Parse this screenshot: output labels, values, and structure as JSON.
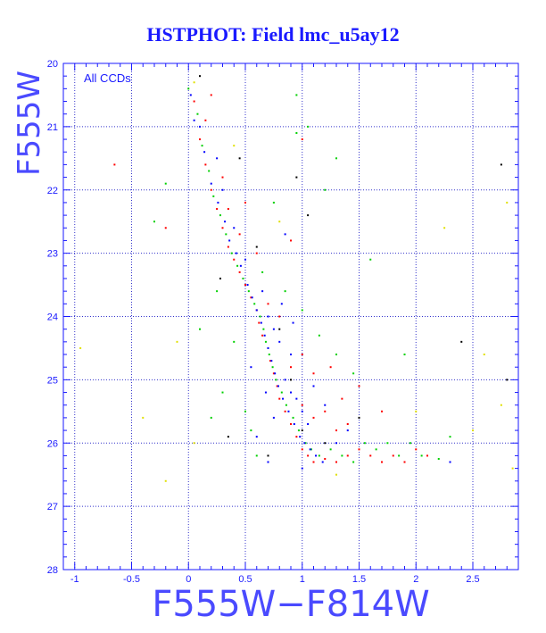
{
  "chart_data": {
    "type": "scatter",
    "title": "HSTPHOT: Field lmc_u5ay12",
    "xlabel": "F555W−F814W",
    "ylabel": "F555W",
    "annotation": "All CCDs",
    "xlim": [
      -1.1,
      2.9
    ],
    "ylim": [
      28,
      20
    ],
    "y_inverted": true,
    "grid": true,
    "x_ticks": [
      -1,
      -0.5,
      0,
      0.5,
      1,
      1.5,
      2,
      2.5
    ],
    "x_tick_labels": [
      "-1",
      "-0.5",
      "0",
      "0.5",
      "1",
      "1.5",
      "2",
      "2.5"
    ],
    "y_ticks": [
      20,
      21,
      22,
      23,
      24,
      25,
      26,
      27,
      28
    ],
    "y_tick_labels": [
      "20",
      "21",
      "22",
      "23",
      "24",
      "25",
      "26",
      "27",
      "28"
    ],
    "colors": {
      "axis": "#1a1aff",
      "grid": "#3333cc",
      "title": "#1a1aff",
      "points": [
        "#ff0000",
        "#00d000",
        "#0000ff",
        "#000000",
        "#e0e000"
      ]
    },
    "series": [
      {
        "color": "#ff0000",
        "points": [
          [
            0.05,
            20.6
          ],
          [
            0.1,
            21.2
          ],
          [
            0.15,
            21.6
          ],
          [
            0.2,
            22.0
          ],
          [
            0.25,
            22.3
          ],
          [
            0.3,
            22.6
          ],
          [
            0.35,
            22.9
          ],
          [
            0.4,
            23.1
          ],
          [
            0.45,
            23.3
          ],
          [
            0.5,
            23.5
          ],
          [
            0.55,
            23.7
          ],
          [
            0.6,
            23.9
          ],
          [
            0.62,
            24.1
          ],
          [
            0.65,
            24.3
          ],
          [
            0.7,
            24.5
          ],
          [
            0.72,
            24.7
          ],
          [
            0.75,
            24.9
          ],
          [
            0.78,
            25.1
          ],
          [
            0.8,
            25.3
          ],
          [
            0.85,
            25.5
          ],
          [
            0.9,
            25.7
          ],
          [
            0.95,
            25.9
          ],
          [
            1.0,
            26.1
          ],
          [
            1.05,
            26.2
          ],
          [
            1.1,
            26.3
          ],
          [
            1.2,
            26.25
          ],
          [
            1.3,
            26.3
          ],
          [
            1.4,
            26.2
          ],
          [
            1.5,
            26.1
          ],
          [
            1.6,
            26.2
          ],
          [
            1.7,
            26.3
          ],
          [
            1.8,
            26.2
          ],
          [
            1.9,
            26.3
          ],
          [
            2.0,
            26.1
          ],
          [
            2.1,
            26.2
          ],
          [
            1.0,
            25.4
          ],
          [
            1.1,
            25.6
          ],
          [
            1.2,
            25.5
          ],
          [
            1.3,
            25.8
          ],
          [
            1.4,
            25.7
          ],
          [
            0.9,
            24.8
          ],
          [
            1.0,
            24.6
          ],
          [
            1.1,
            24.9
          ],
          [
            0.7,
            23.8
          ],
          [
            0.8,
            24.0
          ],
          [
            0.3,
            21.8
          ],
          [
            0.5,
            22.2
          ],
          [
            -0.65,
            21.6
          ],
          [
            -0.2,
            22.6
          ],
          [
            0.2,
            20.5
          ],
          [
            1.0,
            21.2
          ],
          [
            0.9,
            22.8
          ],
          [
            1.5,
            25.1
          ],
          [
            1.7,
            25.5
          ],
          [
            0.6,
            23.0
          ],
          [
            0.45,
            22.7
          ],
          [
            0.35,
            22.3
          ],
          [
            0.15,
            20.9
          ],
          [
            1.25,
            24.8
          ],
          [
            1.35,
            25.3
          ]
        ]
      },
      {
        "color": "#00d000",
        "points": [
          [
            0.0,
            20.4
          ],
          [
            0.08,
            20.8
          ],
          [
            0.12,
            21.3
          ],
          [
            0.18,
            21.7
          ],
          [
            0.22,
            22.1
          ],
          [
            0.28,
            22.4
          ],
          [
            0.33,
            22.7
          ],
          [
            0.38,
            23.0
          ],
          [
            0.43,
            23.2
          ],
          [
            0.48,
            23.4
          ],
          [
            0.53,
            23.6
          ],
          [
            0.58,
            23.8
          ],
          [
            0.63,
            24.0
          ],
          [
            0.66,
            24.2
          ],
          [
            0.68,
            24.4
          ],
          [
            0.71,
            24.6
          ],
          [
            0.74,
            24.8
          ],
          [
            0.77,
            25.0
          ],
          [
            0.82,
            25.2
          ],
          [
            0.86,
            25.4
          ],
          [
            0.92,
            25.6
          ],
          [
            0.97,
            25.8
          ],
          [
            1.03,
            26.0
          ],
          [
            1.08,
            26.1
          ],
          [
            1.15,
            26.2
          ],
          [
            1.25,
            26.1
          ],
          [
            1.35,
            26.2
          ],
          [
            1.45,
            26.3
          ],
          [
            1.55,
            26.0
          ],
          [
            1.65,
            26.1
          ],
          [
            1.75,
            26.0
          ],
          [
            1.85,
            26.2
          ],
          [
            1.95,
            26.0
          ],
          [
            2.05,
            26.2
          ],
          [
            2.2,
            26.25
          ],
          [
            0.55,
            25.8
          ],
          [
            0.6,
            26.2
          ],
          [
            0.5,
            25.5
          ],
          [
            0.3,
            25.2
          ],
          [
            0.1,
            24.2
          ],
          [
            0.2,
            25.6
          ],
          [
            0.85,
            23.6
          ],
          [
            1.0,
            23.9
          ],
          [
            1.15,
            24.3
          ],
          [
            1.3,
            24.6
          ],
          [
            1.45,
            24.9
          ],
          [
            0.95,
            21.1
          ],
          [
            1.05,
            21.0
          ],
          [
            1.3,
            21.5
          ],
          [
            1.6,
            23.1
          ],
          [
            -0.2,
            21.9
          ],
          [
            -0.3,
            22.5
          ],
          [
            0.95,
            20.5
          ],
          [
            1.2,
            22.0
          ],
          [
            0.75,
            22.2
          ],
          [
            0.65,
            23.3
          ],
          [
            0.25,
            23.6
          ],
          [
            0.4,
            24.4
          ],
          [
            2.3,
            25.9
          ],
          [
            1.9,
            24.6
          ]
        ]
      },
      {
        "color": "#0000ff",
        "points": [
          [
            0.02,
            20.5
          ],
          [
            0.1,
            21.0
          ],
          [
            0.14,
            21.4
          ],
          [
            0.2,
            21.9
          ],
          [
            0.26,
            22.2
          ],
          [
            0.32,
            22.5
          ],
          [
            0.36,
            22.8
          ],
          [
            0.42,
            23.0
          ],
          [
            0.46,
            23.2
          ],
          [
            0.52,
            23.5
          ],
          [
            0.56,
            23.7
          ],
          [
            0.6,
            23.9
          ],
          [
            0.64,
            24.1
          ],
          [
            0.67,
            24.3
          ],
          [
            0.7,
            24.5
          ],
          [
            0.73,
            24.7
          ],
          [
            0.76,
            24.9
          ],
          [
            0.79,
            25.1
          ],
          [
            0.83,
            25.3
          ],
          [
            0.88,
            25.5
          ],
          [
            0.93,
            25.7
          ],
          [
            0.98,
            25.9
          ],
          [
            1.02,
            26.0
          ],
          [
            1.07,
            26.1
          ],
          [
            1.12,
            26.2
          ],
          [
            1.18,
            26.3
          ],
          [
            0.85,
            25.0
          ],
          [
            0.9,
            25.2
          ],
          [
            0.95,
            25.3
          ],
          [
            1.0,
            25.5
          ],
          [
            1.05,
            25.7
          ],
          [
            0.75,
            24.2
          ],
          [
            0.8,
            24.4
          ],
          [
            0.7,
            24.0
          ],
          [
            0.65,
            23.6
          ],
          [
            0.9,
            24.6
          ],
          [
            1.1,
            25.1
          ],
          [
            0.6,
            25.9
          ],
          [
            0.7,
            26.3
          ],
          [
            1.3,
            26.0
          ],
          [
            0.3,
            22.0
          ],
          [
            0.4,
            22.6
          ],
          [
            0.5,
            23.1
          ],
          [
            0.55,
            24.8
          ],
          [
            0.75,
            25.6
          ],
          [
            1.2,
            25.4
          ],
          [
            0.92,
            24.1
          ],
          [
            0.82,
            23.8
          ],
          [
            0.68,
            25.2
          ],
          [
            1.4,
            25.8
          ],
          [
            2.3,
            26.3
          ],
          [
            1.0,
            26.4
          ],
          [
            0.25,
            21.5
          ],
          [
            0.05,
            20.9
          ],
          [
            0.85,
            22.7
          ]
        ]
      },
      {
        "color": "#000000",
        "points": [
          [
            0.1,
            20.2
          ],
          [
            0.45,
            21.5
          ],
          [
            0.95,
            21.8
          ],
          [
            0.6,
            22.9
          ],
          [
            0.8,
            24.2
          ],
          [
            0.9,
            25.0
          ],
          [
            1.0,
            25.8
          ],
          [
            1.2,
            26.0
          ],
          [
            0.7,
            26.2
          ],
          [
            2.8,
            25.0
          ],
          [
            2.75,
            21.6
          ],
          [
            2.4,
            24.4
          ],
          [
            0.28,
            23.4
          ],
          [
            1.05,
            22.4
          ],
          [
            1.5,
            25.6
          ],
          [
            0.35,
            25.9
          ]
        ]
      },
      {
        "color": "#e0e000",
        "points": [
          [
            0.05,
            20.3
          ],
          [
            0.4,
            21.3
          ],
          [
            0.8,
            22.5
          ],
          [
            1.3,
            26.5
          ],
          [
            2.0,
            25.5
          ],
          [
            2.6,
            24.6
          ],
          [
            2.75,
            25.4
          ],
          [
            2.85,
            26.4
          ],
          [
            2.5,
            25.8
          ],
          [
            -0.95,
            24.5
          ],
          [
            -0.4,
            25.6
          ],
          [
            -0.2,
            26.6
          ],
          [
            0.05,
            26.0
          ],
          [
            2.25,
            22.6
          ],
          [
            -0.1,
            24.4
          ],
          [
            2.8,
            22.2
          ]
        ]
      }
    ]
  }
}
